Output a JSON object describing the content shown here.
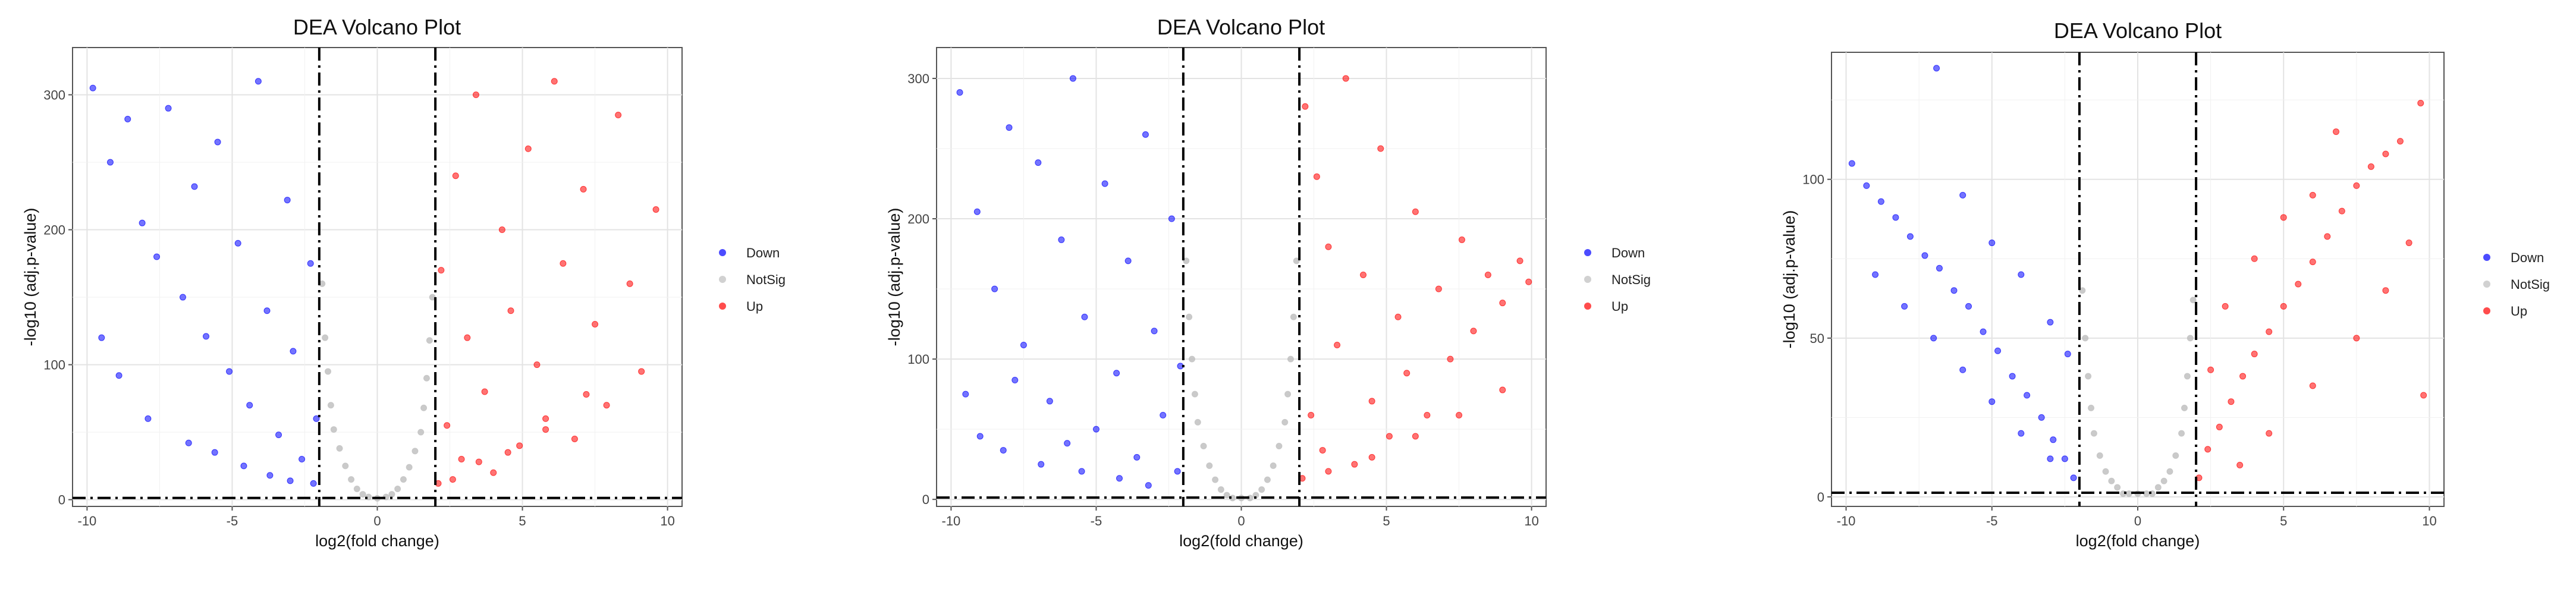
{
  "chart_data": [
    {
      "type": "scatter",
      "title": "DEA Volcano Plot",
      "xlabel": "log2(fold change)",
      "ylabel": "-log10 (adj.p-value)",
      "xlim": [
        -10.5,
        10.5
      ],
      "ylim": [
        -5,
        335
      ],
      "xticks": [
        -10,
        -5,
        0,
        5,
        10
      ],
      "yticks": [
        0,
        100,
        200,
        300
      ],
      "thresholds": {
        "x": [
          -2,
          2
        ],
        "y": 1.3
      },
      "legend": "right",
      "grid": true,
      "series": [
        {
          "name": "Down",
          "color": "#0000ff",
          "points": [
            [
              -9.8,
              305
            ],
            [
              -9.2,
              250
            ],
            [
              -8.6,
              282
            ],
            [
              -8.1,
              205
            ],
            [
              -7.6,
              180
            ],
            [
              -7.2,
              290
            ],
            [
              -6.7,
              150
            ],
            [
              -6.3,
              232
            ],
            [
              -5.9,
              121
            ],
            [
              -5.5,
              265
            ],
            [
              -5.1,
              95
            ],
            [
              -4.8,
              190
            ],
            [
              -4.4,
              70
            ],
            [
              -4.1,
              310
            ],
            [
              -3.8,
              140
            ],
            [
              -3.4,
              48
            ],
            [
              -3.1,
              222
            ],
            [
              -2.9,
              110
            ],
            [
              -2.6,
              30
            ],
            [
              -2.3,
              175
            ],
            [
              -2.2,
              12
            ],
            [
              -2.1,
              60
            ],
            [
              -8.9,
              92
            ],
            [
              -7.9,
              60
            ],
            [
              -6.5,
              42
            ],
            [
              -5.6,
              35
            ],
            [
              -4.6,
              25
            ],
            [
              -3.7,
              18
            ],
            [
              -3.0,
              14
            ],
            [
              -9.5,
              120
            ]
          ]
        },
        {
          "name": "NotSig",
          "color": "#bdbdbd",
          "points": [
            [
              -1.9,
              160
            ],
            [
              -1.8,
              120
            ],
            [
              -1.7,
              95
            ],
            [
              -1.6,
              70
            ],
            [
              -1.5,
              52
            ],
            [
              -1.3,
              38
            ],
            [
              -1.1,
              25
            ],
            [
              -0.9,
              15
            ],
            [
              -0.7,
              8
            ],
            [
              -0.5,
              4
            ],
            [
              -0.3,
              2
            ],
            [
              0,
              1
            ],
            [
              0.3,
              2
            ],
            [
              0.5,
              4
            ],
            [
              0.7,
              8
            ],
            [
              0.9,
              15
            ],
            [
              1.1,
              24
            ],
            [
              1.3,
              36
            ],
            [
              1.5,
              50
            ],
            [
              1.6,
              68
            ],
            [
              1.7,
              90
            ],
            [
              1.8,
              118
            ],
            [
              1.9,
              150
            ]
          ]
        },
        {
          "name": "Up",
          "color": "#ff0000",
          "points": [
            [
              2.1,
              12
            ],
            [
              2.2,
              170
            ],
            [
              2.4,
              55
            ],
            [
              2.7,
              240
            ],
            [
              2.9,
              30
            ],
            [
              3.1,
              120
            ],
            [
              3.4,
              300
            ],
            [
              3.7,
              80
            ],
            [
              4.0,
              20
            ],
            [
              4.3,
              200
            ],
            [
              4.6,
              140
            ],
            [
              4.9,
              40
            ],
            [
              5.2,
              260
            ],
            [
              5.5,
              100
            ],
            [
              5.8,
              60
            ],
            [
              6.1,
              310
            ],
            [
              6.4,
              175
            ],
            [
              6.8,
              45
            ],
            [
              7.1,
              230
            ],
            [
              7.5,
              130
            ],
            [
              7.9,
              70
            ],
            [
              8.3,
              285
            ],
            [
              8.7,
              160
            ],
            [
              9.1,
              95
            ],
            [
              9.6,
              215
            ],
            [
              2.6,
              15
            ],
            [
              3.5,
              28
            ],
            [
              4.5,
              35
            ],
            [
              5.8,
              52
            ],
            [
              7.2,
              78
            ]
          ]
        }
      ]
    },
    {
      "type": "scatter",
      "title": "DEA Volcano Plot",
      "xlabel": "log2(fold change)",
      "ylabel": "-log10 (adj.p-value)",
      "xlim": [
        -10.5,
        10.5
      ],
      "ylim": [
        -5,
        322
      ],
      "xticks": [
        -10,
        -5,
        0,
        5,
        10
      ],
      "yticks": [
        0,
        100,
        200,
        300
      ],
      "thresholds": {
        "x": [
          -2,
          2
        ],
        "y": 1.3
      },
      "legend": "right",
      "grid": true,
      "series": [
        {
          "name": "Down",
          "color": "#0000ff",
          "points": [
            [
              -9.7,
              290
            ],
            [
              -9.1,
              205
            ],
            [
              -8.5,
              150
            ],
            [
              -8.0,
              265
            ],
            [
              -7.5,
              110
            ],
            [
              -7.0,
              240
            ],
            [
              -6.6,
              70
            ],
            [
              -6.2,
              185
            ],
            [
              -5.8,
              300
            ],
            [
              -5.4,
              130
            ],
            [
              -5.0,
              50
            ],
            [
              -4.7,
              225
            ],
            [
              -4.3,
              90
            ],
            [
              -3.9,
              170
            ],
            [
              -3.6,
              30
            ],
            [
              -3.3,
              260
            ],
            [
              -3.0,
              120
            ],
            [
              -2.7,
              60
            ],
            [
              -2.4,
              200
            ],
            [
              -2.2,
              20
            ],
            [
              -2.1,
              95
            ],
            [
              -9.0,
              45
            ],
            [
              -8.2,
              35
            ],
            [
              -6.9,
              25
            ],
            [
              -5.5,
              20
            ],
            [
              -4.2,
              15
            ],
            [
              -3.2,
              10
            ],
            [
              -9.5,
              75
            ],
            [
              -7.8,
              85
            ],
            [
              -6.0,
              40
            ]
          ]
        },
        {
          "name": "NotSig",
          "color": "#bdbdbd",
          "points": [
            [
              -1.9,
              170
            ],
            [
              -1.8,
              130
            ],
            [
              -1.7,
              100
            ],
            [
              -1.6,
              75
            ],
            [
              -1.5,
              55
            ],
            [
              -1.3,
              38
            ],
            [
              -1.1,
              24
            ],
            [
              -0.9,
              14
            ],
            [
              -0.7,
              7
            ],
            [
              -0.5,
              3
            ],
            [
              -0.3,
              1
            ],
            [
              0,
              1
            ],
            [
              0.3,
              1
            ],
            [
              0.5,
              3
            ],
            [
              0.7,
              7
            ],
            [
              0.9,
              14
            ],
            [
              1.1,
              24
            ],
            [
              1.3,
              38
            ],
            [
              1.5,
              55
            ],
            [
              1.6,
              75
            ],
            [
              1.7,
              100
            ],
            [
              1.8,
              130
            ],
            [
              1.9,
              170
            ]
          ]
        },
        {
          "name": "Up",
          "color": "#ff0000",
          "points": [
            [
              2.1,
              15
            ],
            [
              2.2,
              280
            ],
            [
              2.4,
              60
            ],
            [
              2.6,
              230
            ],
            [
              2.8,
              35
            ],
            [
              3.0,
              180
            ],
            [
              3.3,
              110
            ],
            [
              3.6,
              300
            ],
            [
              3.9,
              25
            ],
            [
              4.2,
              160
            ],
            [
              4.5,
              70
            ],
            [
              4.8,
              250
            ],
            [
              5.1,
              45
            ],
            [
              5.4,
              130
            ],
            [
              5.7,
              90
            ],
            [
              6.0,
              205
            ],
            [
              6.4,
              60
            ],
            [
              6.8,
              150
            ],
            [
              7.2,
              100
            ],
            [
              7.6,
              185
            ],
            [
              8.0,
              120
            ],
            [
              8.5,
              160
            ],
            [
              9.0,
              140
            ],
            [
              9.6,
              170
            ],
            [
              9.9,
              155
            ],
            [
              3.0,
              20
            ],
            [
              4.5,
              30
            ],
            [
              6.0,
              45
            ],
            [
              7.5,
              60
            ],
            [
              9.0,
              78
            ]
          ]
        }
      ]
    },
    {
      "type": "scatter",
      "title": "DEA Volcano Plot",
      "xlabel": "log2(fold change)",
      "ylabel": "-log10 (adj.p-value)",
      "xlim": [
        -10.5,
        10.5
      ],
      "ylim": [
        -3,
        140
      ],
      "xticks": [
        -10,
        -5,
        0,
        5,
        10
      ],
      "yticks": [
        0,
        50,
        100
      ],
      "thresholds": {
        "x": [
          -2,
          2
        ],
        "y": 1.3
      },
      "legend": "right",
      "grid": true,
      "series": [
        {
          "name": "Down",
          "color": "#0000ff",
          "points": [
            [
              -9.8,
              105
            ],
            [
              -9.3,
              98
            ],
            [
              -8.8,
              93
            ],
            [
              -8.3,
              88
            ],
            [
              -7.8,
              82
            ],
            [
              -7.3,
              76
            ],
            [
              -6.9,
              135
            ],
            [
              -6.8,
              72
            ],
            [
              -6.3,
              65
            ],
            [
              -5.8,
              60
            ],
            [
              -5.3,
              52
            ],
            [
              -4.8,
              46
            ],
            [
              -4.3,
              38
            ],
            [
              -3.8,
              32
            ],
            [
              -3.3,
              25
            ],
            [
              -2.9,
              18
            ],
            [
              -2.5,
              12
            ],
            [
              -2.2,
              6
            ],
            [
              -6.0,
              95
            ],
            [
              -5.0,
              80
            ],
            [
              -4.0,
              70
            ],
            [
              -3.0,
              55
            ],
            [
              -2.4,
              45
            ],
            [
              -8.0,
              60
            ],
            [
              -7.0,
              50
            ],
            [
              -6.0,
              40
            ],
            [
              -5.0,
              30
            ],
            [
              -4.0,
              20
            ],
            [
              -3.0,
              12
            ],
            [
              -9.0,
              70
            ]
          ]
        },
        {
          "name": "NotSig",
          "color": "#bdbdbd",
          "points": [
            [
              -1.9,
              65
            ],
            [
              -1.8,
              50
            ],
            [
              -1.7,
              38
            ],
            [
              -1.6,
              28
            ],
            [
              -1.5,
              20
            ],
            [
              -1.3,
              13
            ],
            [
              -1.1,
              8
            ],
            [
              -0.9,
              5
            ],
            [
              -0.7,
              3
            ],
            [
              -0.5,
              1
            ],
            [
              -0.3,
              1
            ],
            [
              0,
              1
            ],
            [
              0.3,
              1
            ],
            [
              0.5,
              1
            ],
            [
              0.7,
              3
            ],
            [
              0.9,
              5
            ],
            [
              1.1,
              8
            ],
            [
              1.3,
              13
            ],
            [
              1.5,
              20
            ],
            [
              1.6,
              28
            ],
            [
              1.7,
              38
            ],
            [
              1.8,
              50
            ],
            [
              1.9,
              62
            ]
          ]
        },
        {
          "name": "Up",
          "color": "#ff0000",
          "points": [
            [
              2.1,
              6
            ],
            [
              2.4,
              15
            ],
            [
              2.8,
              22
            ],
            [
              3.2,
              30
            ],
            [
              3.6,
              38
            ],
            [
              4.0,
              45
            ],
            [
              4.5,
              52
            ],
            [
              5.0,
              60
            ],
            [
              5.5,
              67
            ],
            [
              6.0,
              74
            ],
            [
              6.5,
              82
            ],
            [
              7.0,
              90
            ],
            [
              7.5,
              98
            ],
            [
              8.0,
              104
            ],
            [
              8.5,
              108
            ],
            [
              9.0,
              112
            ],
            [
              9.7,
              124
            ],
            [
              9.8,
              32
            ],
            [
              3.0,
              60
            ],
            [
              4.0,
              75
            ],
            [
              5.0,
              88
            ],
            [
              6.0,
              95
            ],
            [
              6.8,
              115
            ],
            [
              2.5,
              40
            ],
            [
              4.5,
              20
            ],
            [
              6.0,
              35
            ],
            [
              7.5,
              50
            ],
            [
              8.5,
              65
            ],
            [
              9.3,
              80
            ],
            [
              3.5,
              10
            ]
          ]
        }
      ]
    }
  ]
}
